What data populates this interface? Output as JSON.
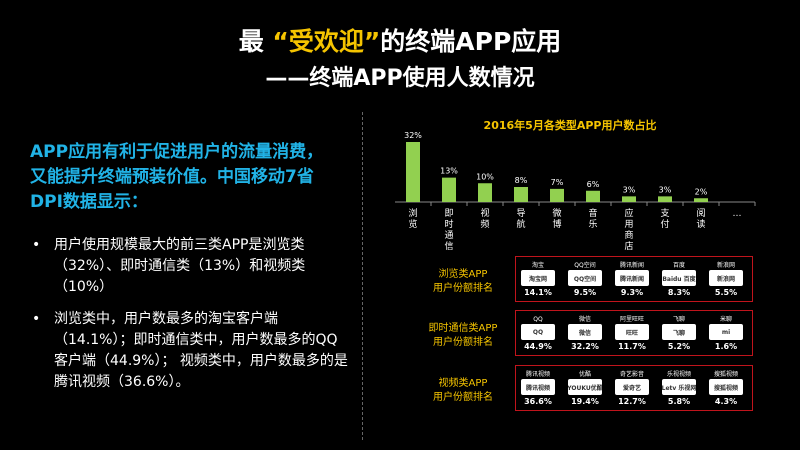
{
  "title": {
    "prefix": "最  ",
    "highlight": "“受欢迎”",
    "suffix": "的终端APP应用"
  },
  "subtitle": "——终端APP使用人数情况",
  "intro": "APP应用有利于促进用户的流量消费，又能提升终端预装价值。中国移动7省DPI数据显示：",
  "bullets": [
    "用户使用规模最大的前三类APP是浏览类（32%）、即时通信类（13%）和视频类（10%）",
    "浏览类中，用户数最多的淘宝客户端（14.1%）；即时通信类中，用户数最多的QQ客户端（44.9%）；  视频类中，用户数最多的是腾讯视频（36.6%）。"
  ],
  "chart_data": {
    "type": "bar",
    "title": "2016年5月各类型APP用户数占比",
    "categories": [
      "浏览",
      "即时通信",
      "视频",
      "导航",
      "微博",
      "音乐",
      "应用商店",
      "支付",
      "阅读",
      "…"
    ],
    "values": [
      32,
      13,
      10,
      8,
      7,
      6,
      3,
      3,
      2,
      null
    ],
    "value_labels": [
      "32%",
      "13%",
      "10%",
      "8%",
      "7%",
      "6%",
      "3%",
      "3%",
      "2%",
      ""
    ],
    "ylim": [
      0,
      32
    ],
    "grid": false,
    "legend": "none",
    "bar_color": "#92d050"
  },
  "rankings": [
    {
      "label": [
        "浏览类APP",
        "用户份额排名"
      ],
      "apps": [
        {
          "name": "淘宝",
          "logo": "淘宝网",
          "pct": "14.1%"
        },
        {
          "name": "QQ空间",
          "logo": "QQ空间",
          "pct": "9.5%"
        },
        {
          "name": "腾讯新闻",
          "logo": "腾讯新闻",
          "pct": "9.3%"
        },
        {
          "name": "百度",
          "logo": "Baidu 百度",
          "pct": "8.3%"
        },
        {
          "name": "新浪网",
          "logo": "新浪网",
          "pct": "5.5%"
        }
      ]
    },
    {
      "label": [
        "即时通信类APP",
        "用户份额排名"
      ],
      "apps": [
        {
          "name": "QQ",
          "logo": "QQ",
          "pct": "44.9%"
        },
        {
          "name": "微信",
          "logo": "微信",
          "pct": "32.2%"
        },
        {
          "name": "阿里旺旺",
          "logo": "旺旺",
          "pct": "11.7%"
        },
        {
          "name": "飞聊",
          "logo": "飞聊",
          "pct": "5.2%"
        },
        {
          "name": "米聊",
          "logo": "mi",
          "pct": "1.6%"
        }
      ]
    },
    {
      "label": [
        "视频类APP",
        "用户份额排名"
      ],
      "apps": [
        {
          "name": "腾讯视频",
          "logo": "腾讯视频",
          "pct": "36.6%"
        },
        {
          "name": "优酷",
          "logo": "YOUKU优酷",
          "pct": "19.4%"
        },
        {
          "name": "奇艺影音",
          "logo": "爱奇艺",
          "pct": "12.7%"
        },
        {
          "name": "乐视视频",
          "logo": "Letv 乐视网",
          "pct": "5.8%"
        },
        {
          "name": "搜狐视频",
          "logo": "搜狐视频",
          "pct": "4.3%"
        }
      ]
    }
  ],
  "colors": {
    "accent_blue": "#21b3e6",
    "accent_yellow": "#f5c400",
    "box_border": "#c0141c",
    "bar": "#92d050"
  }
}
